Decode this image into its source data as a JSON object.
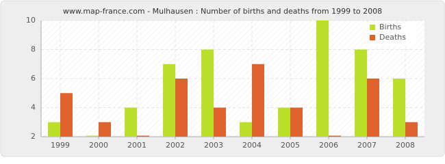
{
  "chart_data": {
    "type": "bar",
    "title": "www.map-france.com - Mulhausen : Number of births and deaths from 1999 to 2008",
    "categories": [
      "1999",
      "2000",
      "2001",
      "2002",
      "2003",
      "2004",
      "2005",
      "2006",
      "2007",
      "2008"
    ],
    "series": [
      {
        "name": "Births",
        "color": "#bbdf2b",
        "values": [
          3,
          2,
          4,
          7,
          8,
          3,
          4,
          10,
          8,
          6
        ]
      },
      {
        "name": "Deaths",
        "color": "#e0622d",
        "values": [
          5,
          3,
          2,
          6,
          4,
          7,
          4,
          2,
          6,
          3
        ]
      }
    ],
    "ylim": [
      2,
      10
    ],
    "yticks": [
      2,
      4,
      6,
      8,
      10
    ],
    "grid": true,
    "legend": "top-right"
  }
}
